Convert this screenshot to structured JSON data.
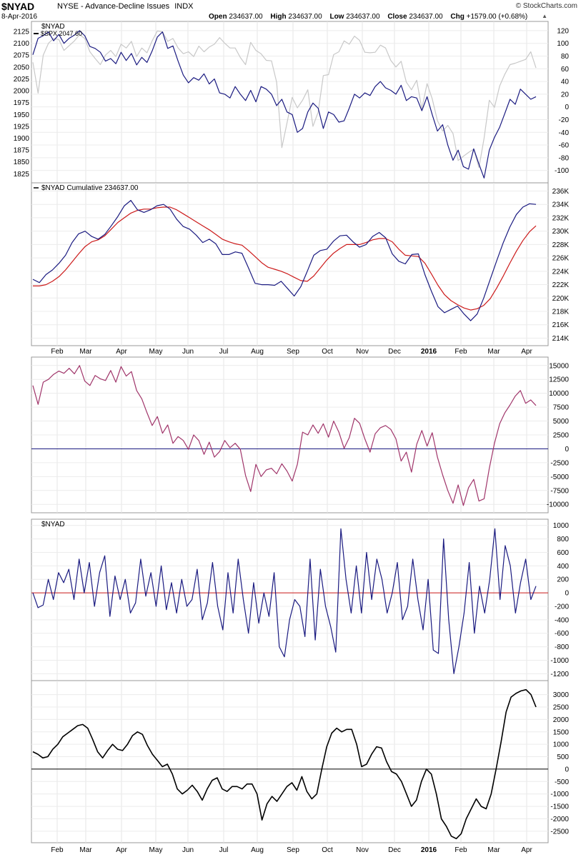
{
  "header": {
    "symbol": "$NYAD",
    "name": "NYSE - Advance-Decline Issues",
    "exchange": "INDX",
    "date": "8-Apr-2016",
    "brand": "© StockCharts.com",
    "open_label": "Open",
    "open": "234637.00",
    "high_label": "High",
    "high": "234637.00",
    "low_label": "Low",
    "low": "234637.00",
    "close_label": "Close",
    "close": "234637.00",
    "chg_label": "Chg",
    "chg": "+1579.00 (+0.68%)"
  },
  "x_axis": {
    "labels": [
      "Feb",
      "Mar",
      "Apr",
      "May",
      "Jun",
      "Jul",
      "Aug",
      "Sep",
      "Oct",
      "Nov",
      "Dec",
      "2016",
      "Feb",
      "Mar",
      "Apr"
    ]
  },
  "chart_data": [
    {
      "type": "line",
      "legend": [
        "$NYAD",
        "$SPX 2047.60"
      ],
      "left_axis": {
        "ticks": [
          2125,
          2100,
          2075,
          2050,
          2025,
          2000,
          1975,
          1950,
          1925,
          1900,
          1875,
          1850,
          1825
        ],
        "ylim": [
          1812,
          2140
        ]
      },
      "right_axis": {
        "ticks": [
          120,
          100,
          80,
          60,
          40,
          20,
          0,
          -20,
          -40,
          -60,
          -80,
          -100
        ],
        "ylim": [
          -115,
          130
        ]
      },
      "series": [
        {
          "name": "$NYAD",
          "axis": "right",
          "color": "#1a1a80",
          "values": [
            82,
            108,
            112,
            118,
            104,
            114,
            100,
            108,
            113,
            120,
            112,
            95,
            92,
            86,
            72,
            76,
            68,
            86,
            73,
            84,
            66,
            78,
            70,
            88,
            110,
            118,
            92,
            96,
            72,
            50,
            38,
            46,
            42,
            52,
            36,
            44,
            22,
            20,
            14,
            32,
            20,
            10,
            26,
            8,
            32,
            28,
            20,
            2,
            12,
            -8,
            -12,
            -40,
            -34,
            -8,
            6,
            -2,
            -34,
            -8,
            -12,
            -24,
            -22,
            -2,
            20,
            14,
            22,
            18,
            32,
            40,
            30,
            26,
            20,
            34,
            10,
            16,
            14,
            -6,
            16,
            -12,
            -38,
            -28,
            -60,
            -84,
            -68,
            -94,
            -98,
            -66,
            -90,
            -112,
            -68,
            -48,
            -32,
            -10,
            12,
            4,
            28,
            20,
            12,
            16
          ]
        },
        {
          "name": "$SPX",
          "axis": "left",
          "color": "#c8c8c8",
          "values": [
            2060,
            1995,
            2075,
            2100,
            2110,
            2108,
            2085,
            2095,
            2105,
            2118,
            2110,
            2082,
            2068,
            2055,
            2075,
            2085,
            2072,
            2098,
            2090,
            2104,
            2072,
            2090,
            2080,
            2105,
            2126,
            2124,
            2104,
            2110,
            2090,
            2078,
            2082,
            2072,
            2094,
            2082,
            2092,
            2098,
            2112,
            2100,
            2090,
            2090,
            2070,
            2055,
            2102,
            2085,
            2078,
            2064,
            2063,
            2018,
            1880,
            1932,
            1986,
            1964,
            1980,
            2002,
            1925,
            1955,
            2032,
            2034,
            2076,
            2082,
            2105,
            2098,
            2115,
            2106,
            2081,
            2080,
            2081,
            2096,
            2090,
            2064,
            2050,
            2062,
            2018,
            2002,
            2022,
            1962,
            2015,
            1983,
            1937,
            1915,
            1927,
            1910,
            1853,
            1862,
            1870,
            1877,
            1838,
            1900,
            1980,
            1965,
            2010,
            2035,
            2055,
            2058,
            2062,
            2066,
            2082,
            2048
          ]
        }
      ]
    },
    {
      "type": "line",
      "legend": [
        "$NYAD Cumulative 234637.00"
      ],
      "right_axis": {
        "ticks": [
          "236K",
          "234K",
          "232K",
          "230K",
          "228K",
          "226K",
          "224K",
          "222K",
          "220K",
          "218K",
          "216K",
          "214K"
        ],
        "ylim": [
          213300,
          236800
        ]
      },
      "series": [
        {
          "name": "$NYAD Cumulative",
          "color": "#1a1a80",
          "values": [
            222800,
            222300,
            223500,
            224200,
            225200,
            226400,
            228300,
            229600,
            230000,
            229200,
            228800,
            229500,
            230800,
            232200,
            233800,
            234600,
            233200,
            232800,
            233200,
            233800,
            234000,
            233300,
            231800,
            230700,
            230300,
            229400,
            228300,
            228800,
            228100,
            226500,
            226500,
            226900,
            226700,
            224500,
            222200,
            222000,
            222000,
            221900,
            222500,
            221400,
            220300,
            221700,
            224000,
            226400,
            227100,
            227300,
            228500,
            229300,
            229400,
            228400,
            227600,
            228000,
            229200,
            229800,
            229000,
            226600,
            225500,
            225100,
            226500,
            226600,
            223500,
            221000,
            218700,
            217800,
            218300,
            218800,
            217600,
            216600,
            217600,
            220000,
            222800,
            225600,
            228300,
            230600,
            232500,
            233600,
            234100,
            234000
          ]
        },
        {
          "name": "moving average",
          "color": "#cc1a1a",
          "values": [
            221800,
            221800,
            222000,
            222500,
            223200,
            224200,
            225400,
            226600,
            227700,
            228400,
            228700,
            229300,
            230300,
            231300,
            232000,
            232700,
            233100,
            233300,
            233300,
            233500,
            233600,
            233600,
            233200,
            232600,
            232000,
            231400,
            230800,
            230200,
            229500,
            228800,
            228400,
            228100,
            227900,
            227100,
            226200,
            225300,
            224600,
            224300,
            224000,
            223600,
            223100,
            222600,
            222500,
            223300,
            224500,
            225700,
            226700,
            227400,
            228000,
            228000,
            228000,
            228300,
            228700,
            228900,
            228900,
            228400,
            227300,
            226400,
            226300,
            226200,
            225200,
            223600,
            221900,
            220500,
            219600,
            219000,
            218500,
            218200,
            218400,
            218900,
            219900,
            221500,
            223300,
            225200,
            227000,
            228600,
            229900,
            230800
          ]
        }
      ]
    },
    {
      "type": "line",
      "legend": [],
      "right_axis": {
        "ticks": [
          15000,
          12500,
          10000,
          7500,
          5000,
          2500,
          0,
          -2500,
          -5000,
          -7500,
          -10000
        ],
        "ylim": [
          -11000,
          16000
        ]
      },
      "series": [
        {
          "name": "oscillator",
          "color": "#a0356a",
          "values": [
            11400,
            8000,
            12000,
            12500,
            13400,
            14000,
            13600,
            14500,
            13500,
            15000,
            12200,
            11400,
            13200,
            12600,
            12300,
            14100,
            12000,
            14800,
            13100,
            13900,
            10500,
            9000,
            6500,
            4200,
            5800,
            2800,
            4300,
            1000,
            2200,
            1500,
            -100,
            2500,
            1500,
            -1000,
            1200,
            -1500,
            -500,
            1500,
            200,
            1000,
            -100,
            -4800,
            -7700,
            -2800,
            -5000,
            -3800,
            -3500,
            -4500,
            -2700,
            -4000,
            -5800,
            -2800,
            3000,
            2500,
            4300,
            2800,
            4500,
            2100,
            5000,
            3000,
            100,
            2000,
            5500,
            4600,
            1800,
            -600,
            2700,
            3800,
            4200,
            3500,
            1800,
            -2200,
            -600,
            -4200,
            800,
            3300,
            500,
            2900,
            -1500,
            -4700,
            -7500,
            -9800,
            -6500,
            -10200,
            -7000,
            -5500,
            -9400,
            -9000,
            -3500,
            1000,
            4500,
            6500,
            7900,
            9500,
            10500,
            8200,
            8800,
            7800
          ]
        }
      ]
    },
    {
      "type": "line",
      "legend": [
        "$NYAD"
      ],
      "right_axis": {
        "ticks": [
          1000,
          800,
          600,
          400,
          200,
          0,
          -200,
          -400,
          -600,
          -800,
          -1000,
          -1200
        ],
        "ylim": [
          -1260,
          1050
        ]
      },
      "series": [
        {
          "name": "$NYAD daily",
          "color": "#1a1a80",
          "values": [
            0,
            -220,
            -180,
            200,
            -100,
            300,
            150,
            350,
            -100,
            500,
            0,
            450,
            -200,
            300,
            550,
            -350,
            250,
            -100,
            200,
            -300,
            -150,
            500,
            -50,
            300,
            -200,
            400,
            -250,
            150,
            -300,
            200,
            -200,
            -100,
            350,
            -400,
            -150,
            450,
            -200,
            -550,
            300,
            -300,
            500,
            -100,
            -600,
            150,
            -450,
            0,
            -350,
            300,
            -800,
            -950,
            -400,
            -100,
            -200,
            -650,
            500,
            -700,
            350,
            -200,
            -500,
            -880,
            950,
            200,
            -300,
            400,
            -300,
            600,
            -100,
            500,
            200,
            -300,
            0,
            450,
            -400,
            -200,
            500,
            -100,
            -550,
            200,
            -850,
            -900,
            800,
            -400,
            -1200,
            -800,
            -300,
            450,
            -600,
            100,
            -300,
            200,
            950,
            -100,
            700,
            400,
            -300,
            150,
            500,
            -100,
            100
          ]
        }
      ]
    },
    {
      "type": "line",
      "legend": [],
      "right_axis": {
        "ticks": [
          3000,
          2500,
          2000,
          1500,
          1000,
          500,
          0,
          -500,
          -1000,
          -1500,
          -2000,
          -2500
        ],
        "ylim": [
          -2850,
          3450
        ]
      },
      "series": [
        {
          "name": "summation",
          "color": "#000000",
          "values": [
            700,
            600,
            450,
            500,
            800,
            1000,
            1300,
            1450,
            1600,
            1750,
            1800,
            1650,
            1200,
            700,
            450,
            750,
            1000,
            800,
            750,
            1000,
            1350,
            1500,
            1400,
            950,
            600,
            350,
            100,
            200,
            -200,
            -800,
            -1000,
            -850,
            -650,
            -900,
            -1250,
            -800,
            -450,
            -350,
            -800,
            -900,
            -700,
            -700,
            -800,
            -600,
            -600,
            -1000,
            -2050,
            -1400,
            -1100,
            -1300,
            -1000,
            -700,
            -550,
            -850,
            -300,
            -900,
            -1200,
            -1000,
            0,
            900,
            1450,
            1650,
            1500,
            1600,
            1600,
            1000,
            100,
            200,
            600,
            900,
            850,
            300,
            -100,
            -200,
            -500,
            -1000,
            -1500,
            -1250,
            -500,
            0,
            -200,
            -1000,
            -2000,
            -2300,
            -2700,
            -2800,
            -2600,
            -2000,
            -1600,
            -1200,
            -1500,
            -1600,
            -1000,
            0,
            1100,
            2300,
            2900,
            3050,
            3150,
            3200,
            3000,
            2500
          ]
        }
      ]
    }
  ]
}
